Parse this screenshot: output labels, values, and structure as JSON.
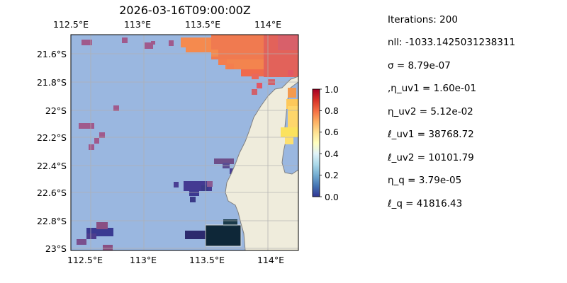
{
  "title": "2026-03-16T09:00:00Z",
  "map": {
    "colors": {
      "ocean": "#9ab7e0",
      "land": "#efecdc",
      "coast": "#808080",
      "grid": "#b0b0b0"
    },
    "lon_ticks": [
      "112.5°E",
      "113°E",
      "113.5°E",
      "114°E"
    ],
    "lat_ticks": [
      "21.6°S",
      "21.8°S",
      "22°S",
      "22.2°S",
      "22.4°S",
      "22.6°S",
      "22.8°S",
      "23°S"
    ]
  },
  "colorbar": {
    "colormap": "RdYlBu_r",
    "ticks": [
      "0.0",
      "0.2",
      "0.4",
      "0.6",
      "0.8",
      "1.0"
    ],
    "colors": [
      "#313695",
      "#4575b4",
      "#74add1",
      "#abd9e9",
      "#e0f3f8",
      "#ffffbf",
      "#fee090",
      "#fdae61",
      "#f46d43",
      "#d73027",
      "#a50026"
    ]
  },
  "stats": [
    "Iterations: 200",
    "nll: -1033.1425031238311",
    "σ = 8.79e-07",
    ",η_uv1 = 1.60e-01",
    "η_uv2 = 5.12e-02",
    "ℓ_uv1 = 38768.72",
    "ℓ_uv2 = 10101.79",
    "η_q = 3.79e-05",
    "ℓ_q = 41816.43"
  ]
}
